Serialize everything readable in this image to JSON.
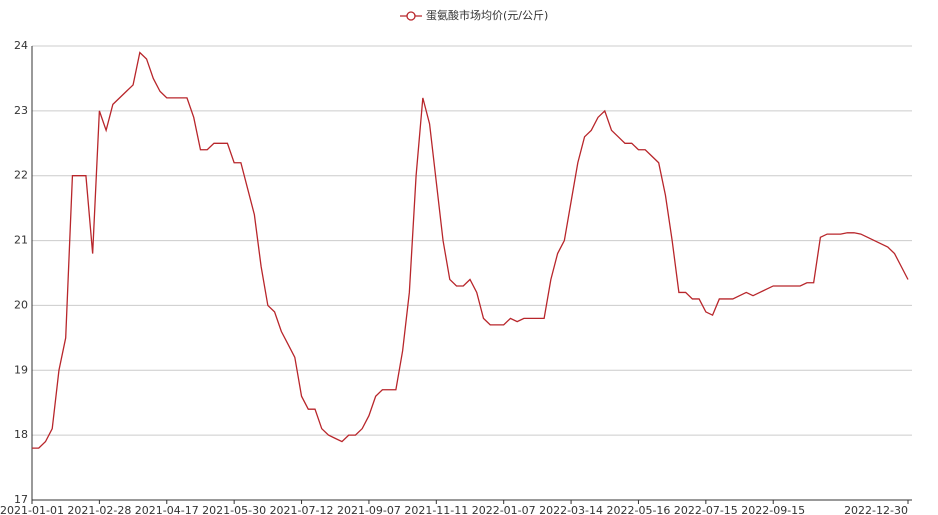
{
  "chart_data": {
    "type": "line",
    "series": [
      {
        "name": "蛋氨酸市场均价(元/公斤)",
        "color": "#b8262b",
        "values": [
          17.8,
          17.8,
          17.9,
          18.1,
          19.0,
          19.5,
          22.0,
          22.0,
          22.0,
          20.8,
          23.0,
          22.7,
          23.1,
          23.2,
          23.3,
          23.4,
          23.9,
          23.8,
          23.5,
          23.3,
          23.2,
          23.2,
          23.2,
          23.2,
          22.9,
          22.4,
          22.4,
          22.5,
          22.5,
          22.5,
          22.2,
          22.2,
          21.8,
          21.4,
          20.6,
          20.0,
          19.9,
          19.6,
          19.4,
          19.2,
          18.6,
          18.4,
          18.4,
          18.1,
          18.0,
          17.95,
          17.9,
          18.0,
          18.0,
          18.1,
          18.3,
          18.6,
          18.7,
          18.7,
          18.7,
          19.3,
          20.2,
          22.0,
          23.2,
          22.8,
          21.9,
          21.0,
          20.4,
          20.3,
          20.3,
          20.4,
          20.2,
          19.8,
          19.7,
          19.7,
          19.7,
          19.8,
          19.75,
          19.8,
          19.8,
          19.8,
          19.8,
          20.4,
          20.8,
          21.0,
          21.6,
          22.2,
          22.6,
          22.7,
          22.9,
          23.0,
          22.7,
          22.6,
          22.5,
          22.5,
          22.4,
          22.4,
          22.3,
          22.2,
          21.7,
          21.0,
          20.2,
          20.2,
          20.1,
          20.1,
          19.9,
          19.85,
          20.1,
          20.1,
          20.1,
          20.15,
          20.2,
          20.15,
          20.2,
          20.25,
          20.3,
          20.3,
          20.3,
          20.3,
          20.3,
          20.35,
          20.35,
          21.05,
          21.1,
          21.1,
          21.1,
          21.12,
          21.12,
          21.1,
          21.05,
          21.0,
          20.95,
          20.9,
          20.8,
          20.6,
          20.4
        ]
      }
    ],
    "categories": [
      "2021-01-01",
      null,
      null,
      null,
      null,
      null,
      null,
      null,
      null,
      null,
      "2021-02-28",
      null,
      null,
      null,
      null,
      null,
      null,
      null,
      null,
      null,
      "2021-04-17",
      null,
      null,
      null,
      null,
      null,
      null,
      null,
      null,
      null,
      "2021-05-30",
      null,
      null,
      null,
      null,
      null,
      null,
      null,
      null,
      null,
      "2021-07-12",
      null,
      null,
      null,
      null,
      null,
      null,
      null,
      null,
      null,
      "2021-09-07",
      null,
      null,
      null,
      null,
      null,
      null,
      null,
      null,
      null,
      "2021-11-11",
      null,
      null,
      null,
      null,
      null,
      null,
      null,
      null,
      null,
      "2022-01-07",
      null,
      null,
      null,
      null,
      null,
      null,
      null,
      null,
      null,
      "2022-03-14",
      null,
      null,
      null,
      null,
      null,
      null,
      null,
      null,
      null,
      "2022-05-16",
      null,
      null,
      null,
      null,
      null,
      null,
      null,
      null,
      null,
      "2022-07-15",
      null,
      null,
      null,
      null,
      null,
      null,
      null,
      null,
      null,
      "2022-09-15",
      null,
      null,
      null,
      null,
      null,
      null,
      null,
      null,
      null,
      null,
      null,
      null,
      null,
      null,
      null,
      null,
      null,
      null,
      null,
      "2022-12-30"
    ],
    "ylim": [
      17,
      24
    ],
    "yticks": [
      17,
      18,
      19,
      20,
      21,
      22,
      23,
      24
    ],
    "grid": true,
    "legend": "top"
  }
}
